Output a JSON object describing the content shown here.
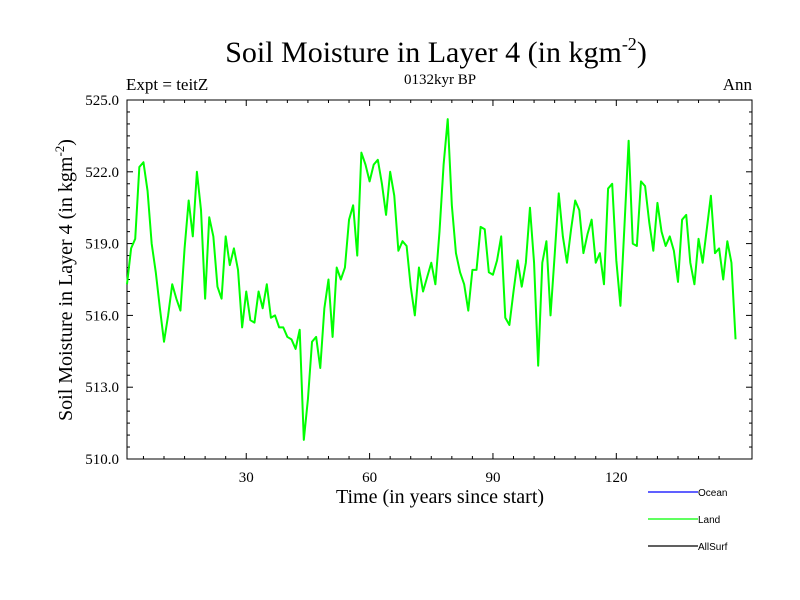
{
  "chart_data": {
    "type": "line",
    "title_main": "Soil Moisture in Layer 4 (in kgm",
    "title_sup": "-2",
    "title_close": ")",
    "left_label": "Expt = teitZ",
    "subtitle": "0132kyr BP",
    "right_label": "Ann",
    "xlabel": "Time (in years since start)",
    "ylabel_main": "Soil Moisture in Layer 4 (in kgm",
    "ylabel_sup": "-2",
    "ylabel_close": ")",
    "xlim": [
      1,
      153
    ],
    "ylim": [
      510.0,
      525.0
    ],
    "xticks": [
      30,
      60,
      90,
      120
    ],
    "xtick_labels": [
      "30",
      "60",
      "90",
      "120"
    ],
    "yticks": [
      510.0,
      513.0,
      516.0,
      519.0,
      522.0,
      525.0
    ],
    "ytick_labels": [
      "510.0",
      "513.0",
      "516.0",
      "519.0",
      "522.0",
      "525.0"
    ],
    "legend": [
      {
        "name": "Ocean",
        "color": "#0000ff"
      },
      {
        "name": "Land",
        "color": "#00ff00"
      },
      {
        "name": "AllSurf",
        "color": "#000000"
      }
    ],
    "series": [
      {
        "name": "Land",
        "color": "#00ff00",
        "x_start": 1,
        "x_step": 1,
        "values": [
          517.3,
          518.8,
          519.2,
          522.2,
          522.4,
          521.2,
          519.0,
          517.8,
          516.3,
          514.9,
          516.0,
          517.3,
          516.7,
          516.2,
          518.8,
          520.8,
          519.3,
          522.0,
          520.4,
          516.7,
          520.1,
          519.3,
          517.2,
          516.7,
          519.3,
          518.1,
          518.8,
          517.9,
          515.5,
          517.0,
          515.8,
          515.7,
          517.0,
          516.3,
          517.3,
          515.9,
          516.0,
          515.5,
          515.5,
          515.1,
          515.0,
          514.6,
          515.4,
          510.8,
          512.5,
          514.9,
          515.1,
          513.8,
          516.3,
          517.5,
          515.1,
          518.0,
          517.5,
          518.0,
          520.0,
          520.6,
          518.5,
          522.8,
          522.3,
          521.6,
          522.3,
          522.5,
          521.5,
          520.2,
          522.0,
          521.0,
          518.7,
          519.1,
          518.9,
          517.2,
          516.0,
          518.0,
          517.0,
          517.6,
          518.2,
          517.3,
          519.5,
          522.3,
          524.2,
          520.6,
          518.6,
          517.8,
          517.3,
          516.2,
          517.9,
          517.9,
          519.7,
          519.6,
          517.8,
          517.7,
          518.3,
          519.3,
          515.9,
          515.6,
          517.0,
          518.3,
          517.2,
          518.2,
          520.5,
          518.2,
          513.9,
          518.2,
          519.1,
          516.0,
          518.5,
          521.1,
          519.3,
          518.2,
          519.6,
          520.8,
          520.4,
          518.6,
          519.4,
          520.0,
          518.2,
          518.6,
          517.3,
          521.3,
          521.5,
          518.3,
          516.4,
          519.8,
          523.3,
          519.0,
          518.9,
          521.6,
          521.4,
          519.9,
          518.7,
          520.7,
          519.5,
          518.9,
          519.3,
          518.7,
          517.4,
          520.0,
          520.2,
          518.2,
          517.3,
          519.2,
          518.2,
          519.6,
          521.0,
          518.6,
          518.8,
          517.5,
          519.1,
          518.2,
          515.0
        ]
      }
    ]
  }
}
